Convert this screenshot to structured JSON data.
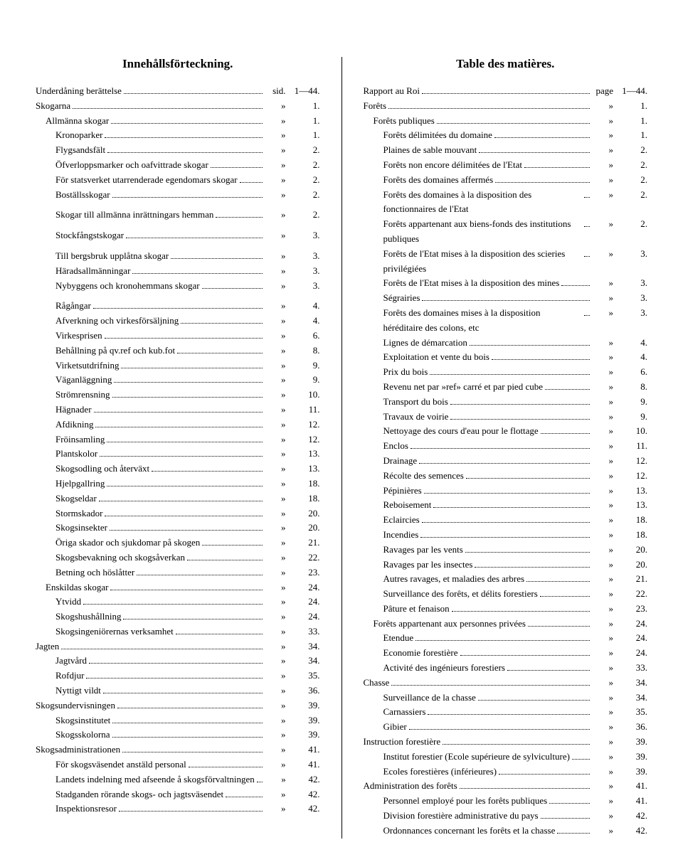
{
  "left": {
    "title": "Innehållsförteckning.",
    "entries": [
      {
        "label": "Underdåning berättelse",
        "marker": "sid.",
        "page": "1—44.",
        "indent": 0
      },
      {
        "label": "Skogarna",
        "marker": "»",
        "page": "1.",
        "indent": 0
      },
      {
        "label": "Allmänna skogar",
        "marker": "»",
        "page": "1.",
        "indent": 1
      },
      {
        "label": "Kronoparker",
        "marker": "»",
        "page": "1.",
        "indent": 2
      },
      {
        "label": "Flygsandsfält",
        "marker": "»",
        "page": "2.",
        "indent": 2
      },
      {
        "label": "Öfverloppsmarker och oafvittrade skogar",
        "marker": "»",
        "page": "2.",
        "indent": 2
      },
      {
        "label": "För statsverket utarrenderade egendomars skogar",
        "marker": "»",
        "page": "2.",
        "indent": 2
      },
      {
        "label": "Boställsskogar",
        "marker": "»",
        "page": "2.",
        "indent": 2
      },
      {
        "gap": true
      },
      {
        "label": "Skogar till allmänna inrättningars hemman",
        "marker": "»",
        "page": "2.",
        "indent": 2
      },
      {
        "gap": true
      },
      {
        "label": "Stockfångstskogar",
        "marker": "»",
        "page": "3.",
        "indent": 2
      },
      {
        "gap": true
      },
      {
        "label": "Till bergsbruk upplåtna skogar",
        "marker": "»",
        "page": "3.",
        "indent": 2
      },
      {
        "label": "Häradsallmänningar",
        "marker": "»",
        "page": "3.",
        "indent": 2
      },
      {
        "label": "Nybyggens och kronohemmans skogar",
        "marker": "»",
        "page": "3.",
        "indent": 2
      },
      {
        "gap": true
      },
      {
        "label": "Rågångar",
        "marker": "»",
        "page": "4.",
        "indent": 2
      },
      {
        "label": "Afverkning och virkesförsäljning",
        "marker": "»",
        "page": "4.",
        "indent": 2
      },
      {
        "label": "Virkesprisen",
        "marker": "»",
        "page": "6.",
        "indent": 2
      },
      {
        "label": "Behållning på qv.ref och kub.fot",
        "marker": "»",
        "page": "8.",
        "indent": 2
      },
      {
        "label": "Virketsutdrifning",
        "marker": "»",
        "page": "9.",
        "indent": 2
      },
      {
        "label": "Väganläggning",
        "marker": "»",
        "page": "9.",
        "indent": 2
      },
      {
        "label": "Strömrensning",
        "marker": "»",
        "page": "10.",
        "indent": 2
      },
      {
        "label": "Hägnader",
        "marker": "»",
        "page": "11.",
        "indent": 2
      },
      {
        "label": "Afdikning",
        "marker": "»",
        "page": "12.",
        "indent": 2
      },
      {
        "label": "Fröinsamling",
        "marker": "»",
        "page": "12.",
        "indent": 2
      },
      {
        "label": "Plantskolor",
        "marker": "»",
        "page": "13.",
        "indent": 2
      },
      {
        "label": "Skogsodling och återväxt",
        "marker": "»",
        "page": "13.",
        "indent": 2
      },
      {
        "label": "Hjelpgallring",
        "marker": "»",
        "page": "18.",
        "indent": 2
      },
      {
        "label": "Skogseldar",
        "marker": "»",
        "page": "18.",
        "indent": 2
      },
      {
        "label": "Stormskador",
        "marker": "»",
        "page": "20.",
        "indent": 2
      },
      {
        "label": "Skogsinsekter",
        "marker": "»",
        "page": "20.",
        "indent": 2
      },
      {
        "label": "Öriga skador och sjukdomar på skogen",
        "marker": "»",
        "page": "21.",
        "indent": 2
      },
      {
        "label": "Skogsbevakning och skogsåverkan",
        "marker": "»",
        "page": "22.",
        "indent": 2
      },
      {
        "label": "Betning och höslåtter",
        "marker": "»",
        "page": "23.",
        "indent": 2
      },
      {
        "label": "Enskildas skogar",
        "marker": "»",
        "page": "24.",
        "indent": 1
      },
      {
        "label": "Ytvidd",
        "marker": "»",
        "page": "24.",
        "indent": 2
      },
      {
        "label": "Skogshushållning",
        "marker": "»",
        "page": "24.",
        "indent": 2
      },
      {
        "label": "Skogsingeniörernas verksamhet",
        "marker": "»",
        "page": "33.",
        "indent": 2
      },
      {
        "label": "Jagten",
        "marker": "»",
        "page": "34.",
        "indent": 0
      },
      {
        "label": "Jagtvård",
        "marker": "»",
        "page": "34.",
        "indent": 2
      },
      {
        "label": "Rofdjur",
        "marker": "»",
        "page": "35.",
        "indent": 2
      },
      {
        "label": "Nyttigt vildt",
        "marker": "»",
        "page": "36.",
        "indent": 2
      },
      {
        "label": "Skogsundervisningen",
        "marker": "»",
        "page": "39.",
        "indent": 0
      },
      {
        "label": "Skogsinstitutet",
        "marker": "»",
        "page": "39.",
        "indent": 2
      },
      {
        "label": "Skogsskolorna",
        "marker": "»",
        "page": "39.",
        "indent": 2
      },
      {
        "label": "Skogsadministrationen",
        "marker": "»",
        "page": "41.",
        "indent": 0
      },
      {
        "label": "För skogsväsendet anstäld personal",
        "marker": "»",
        "page": "41.",
        "indent": 2
      },
      {
        "label": "Landets indelning med afseende å skogsförvaltningen",
        "marker": "»",
        "page": "42.",
        "indent": 2
      },
      {
        "label": "Stadganden rörande skogs- och jagtsväsendet",
        "marker": "»",
        "page": "42.",
        "indent": 2
      },
      {
        "label": "Inspektionsresor",
        "marker": "»",
        "page": "42.",
        "indent": 2
      }
    ]
  },
  "right": {
    "title": "Table des matières.",
    "entries": [
      {
        "label": "Rapport au Roi",
        "marker": "page",
        "page": "1—44.",
        "indent": 0
      },
      {
        "label": "Forêts",
        "marker": "»",
        "page": "1.",
        "indent": 0
      },
      {
        "label": "Forêts publiques",
        "marker": "»",
        "page": "1.",
        "indent": 1
      },
      {
        "label": "Forêts délimitées du domaine",
        "marker": "»",
        "page": "1.",
        "indent": 2
      },
      {
        "label": "Plaines de sable mouvant",
        "marker": "»",
        "page": "2.",
        "indent": 2
      },
      {
        "label": "Forêts non encore délimitées de l'Etat",
        "marker": "»",
        "page": "2.",
        "indent": 2
      },
      {
        "label": "Forêts des domaines affermés",
        "marker": "»",
        "page": "2.",
        "indent": 2
      },
      {
        "label": "Forêts des domaines à la disposition des fonctionnaires de l'Etat",
        "marker": "»",
        "page": "2.",
        "indent": 2,
        "wrap": true
      },
      {
        "label": "Forêts appartenant aux biens-fonds des institutions publiques",
        "marker": "»",
        "page": "2.",
        "indent": 2,
        "wrap": true
      },
      {
        "label": "Forêts de l'Etat mises à la disposition des scieries privilégiées",
        "marker": "»",
        "page": "3.",
        "indent": 2,
        "wrap": true
      },
      {
        "label": "Forêts de l'Etat mises à la disposition des mines",
        "marker": "»",
        "page": "3.",
        "indent": 2
      },
      {
        "label": "Ségrairies",
        "marker": "»",
        "page": "3.",
        "indent": 2
      },
      {
        "label": "Forêts des domaines mises à la disposition héréditaire des colons, etc",
        "marker": "»",
        "page": "3.",
        "indent": 2,
        "wrap": true
      },
      {
        "label": "Lignes de démarcation",
        "marker": "»",
        "page": "4.",
        "indent": 2
      },
      {
        "label": "Exploitation et vente du bois",
        "marker": "»",
        "page": "4.",
        "indent": 2
      },
      {
        "label": "Prix du bois",
        "marker": "»",
        "page": "6.",
        "indent": 2
      },
      {
        "label": "Revenu net par »ref» carré et par pied cube",
        "marker": "»",
        "page": "8.",
        "indent": 2
      },
      {
        "label": "Transport du bois",
        "marker": "»",
        "page": "9.",
        "indent": 2
      },
      {
        "label": "Travaux de voirie",
        "marker": "»",
        "page": "9.",
        "indent": 2
      },
      {
        "label": "Nettoyage des cours d'eau pour le flottage",
        "marker": "»",
        "page": "10.",
        "indent": 2
      },
      {
        "label": "Enclos",
        "marker": "»",
        "page": "11.",
        "indent": 2
      },
      {
        "label": "Drainage",
        "marker": "»",
        "page": "12.",
        "indent": 2
      },
      {
        "label": "Récolte des semences",
        "marker": "»",
        "page": "12.",
        "indent": 2
      },
      {
        "label": "Pépinières",
        "marker": "»",
        "page": "13.",
        "indent": 2
      },
      {
        "label": "Reboisement",
        "marker": "»",
        "page": "13.",
        "indent": 2
      },
      {
        "label": "Eclaircies",
        "marker": "»",
        "page": "18.",
        "indent": 2
      },
      {
        "label": "Incendies",
        "marker": "»",
        "page": "18.",
        "indent": 2
      },
      {
        "label": "Ravages par les vents",
        "marker": "»",
        "page": "20.",
        "indent": 2
      },
      {
        "label": "Ravages par les insectes",
        "marker": "»",
        "page": "20.",
        "indent": 2
      },
      {
        "label": "Autres ravages, et maladies des arbres",
        "marker": "»",
        "page": "21.",
        "indent": 2
      },
      {
        "label": "Surveillance des forêts, et délits forestiers",
        "marker": "»",
        "page": "22.",
        "indent": 2
      },
      {
        "label": "Pâture et fenaison",
        "marker": "»",
        "page": "23.",
        "indent": 2
      },
      {
        "label": "Forêts appartenant aux personnes privées",
        "marker": "»",
        "page": "24.",
        "indent": 1
      },
      {
        "label": "Etendue",
        "marker": "»",
        "page": "24.",
        "indent": 2
      },
      {
        "label": "Economie forestière",
        "marker": "»",
        "page": "24.",
        "indent": 2
      },
      {
        "label": "Activité des ingénieurs forestiers",
        "marker": "»",
        "page": "33.",
        "indent": 2
      },
      {
        "label": "Chasse",
        "marker": "»",
        "page": "34.",
        "indent": 0
      },
      {
        "label": "Surveillance de la chasse",
        "marker": "»",
        "page": "34.",
        "indent": 2
      },
      {
        "label": "Carnassiers",
        "marker": "»",
        "page": "35.",
        "indent": 2
      },
      {
        "label": "Gibier",
        "marker": "»",
        "page": "36.",
        "indent": 2
      },
      {
        "label": "Instruction forestière",
        "marker": "»",
        "page": "39.",
        "indent": 0
      },
      {
        "label": "Institut forestier (Ecole supérieure de sylviculture)",
        "marker": "»",
        "page": "39.",
        "indent": 2
      },
      {
        "label": "Ecoles forestières (inférieures)",
        "marker": "»",
        "page": "39.",
        "indent": 2
      },
      {
        "label": "Administration des forêts",
        "marker": "»",
        "page": "41.",
        "indent": 0
      },
      {
        "label": "Personnel employé pour les forêts publiques",
        "marker": "»",
        "page": "41.",
        "indent": 2
      },
      {
        "label": "Division forestière administrative du pays",
        "marker": "»",
        "page": "42.",
        "indent": 2
      },
      {
        "label": "Ordonnances concernant les forêts et la chasse",
        "marker": "»",
        "page": "42.",
        "indent": 2
      }
    ]
  }
}
